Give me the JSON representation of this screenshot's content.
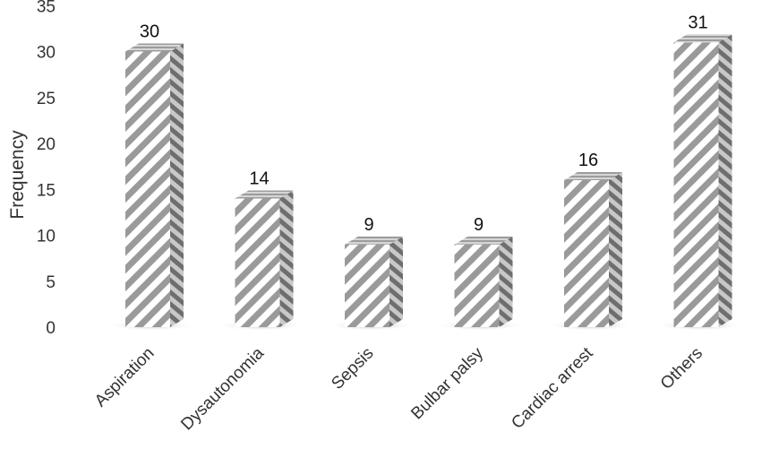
{
  "chart_data": {
    "type": "bar",
    "style": "3d-column-hatched",
    "categories": [
      "Aspiration",
      "Dysautonomia",
      "Sepsis",
      "Bulbar palsy",
      "Cardiac arrest",
      "Others"
    ],
    "values": [
      30,
      14,
      9,
      9,
      16,
      31
    ],
    "data_labels": [
      "30",
      "14",
      "9",
      "9",
      "16",
      "31"
    ],
    "ylabel": "Frequency",
    "xlabel": "",
    "ylim": [
      0,
      35
    ],
    "yticks": [
      "0",
      "5",
      "10",
      "15",
      "20",
      "25",
      "30",
      "35"
    ],
    "grid": false,
    "legend": "none",
    "colors": {
      "hatch_dark": "#9a9a9a",
      "hatch_light": "#ffffff",
      "side_dark": "#6e6e6e",
      "side_light": "#c8c8c8",
      "top": "#b0b0b0",
      "shadow": "#bdbdbd"
    }
  }
}
